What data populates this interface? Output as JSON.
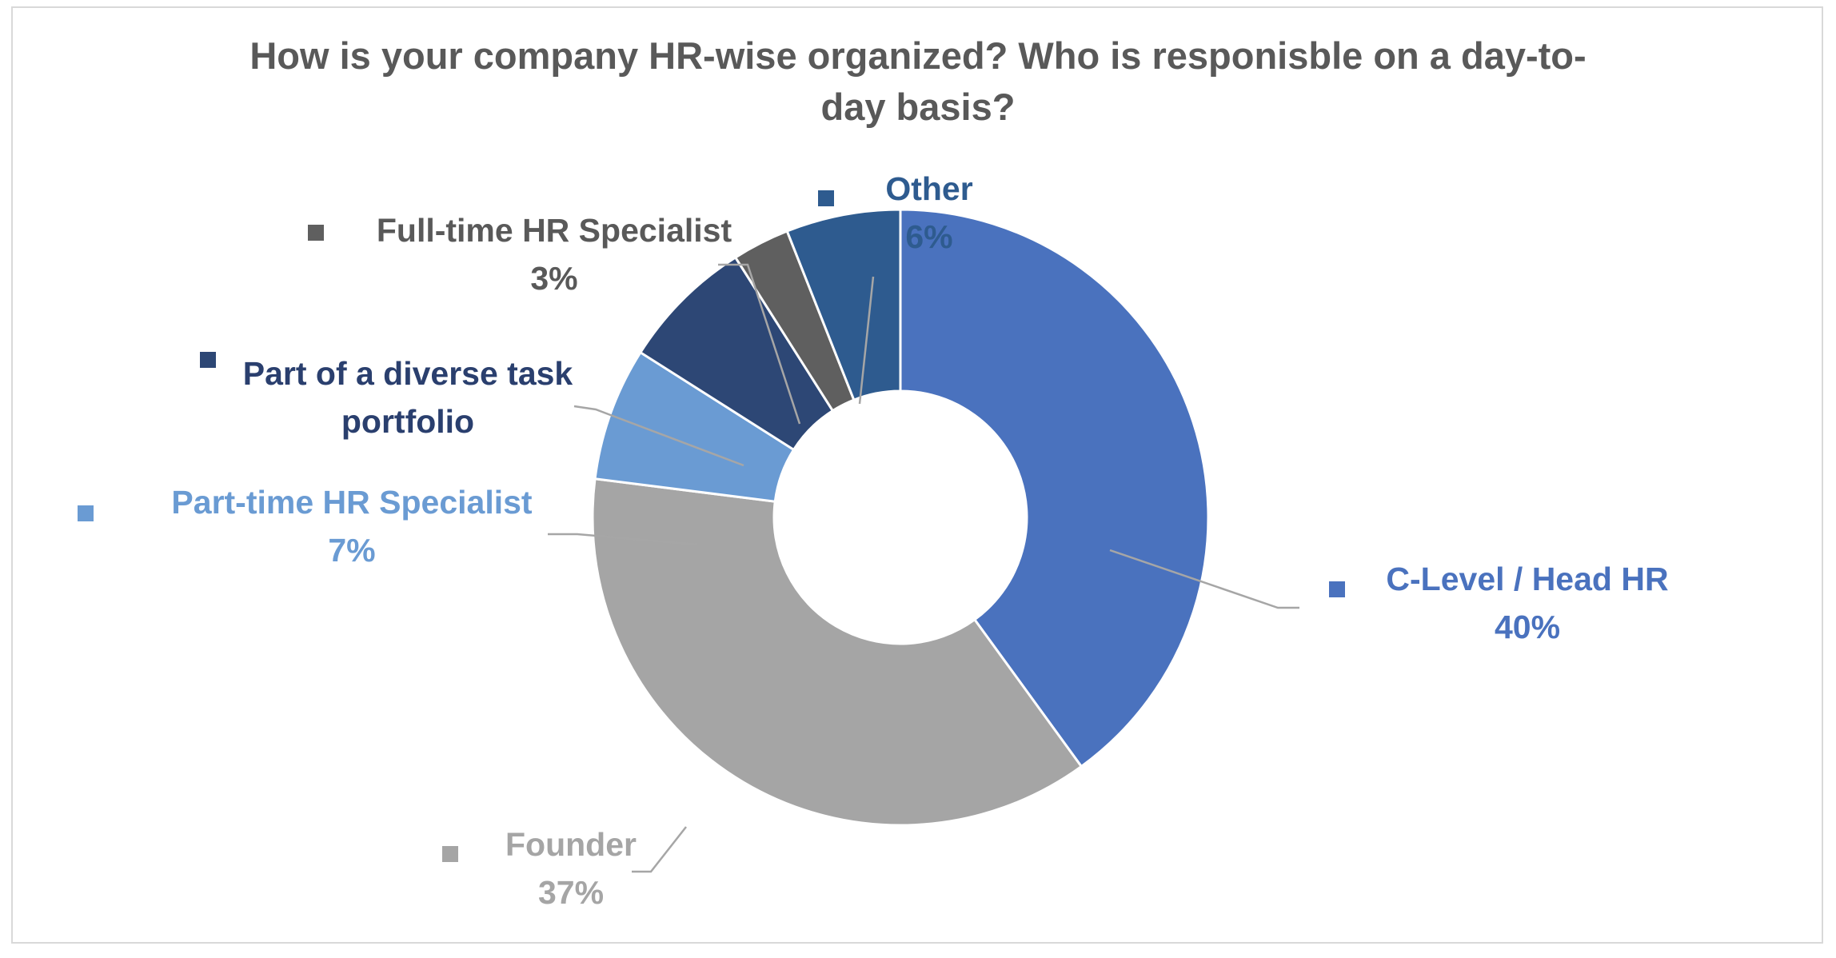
{
  "chart_data": {
    "type": "pie",
    "donut": true,
    "title_lines": [
      "How is your company HR-wise organized? Who is responisble on a day-to-",
      "day basis?"
    ],
    "slices": [
      {
        "name": "C-Level / Head HR",
        "label_lines": [
          "C-Level / Head HR"
        ],
        "value": 40,
        "value_label": "40%",
        "color": "#4a72be"
      },
      {
        "name": "Founder",
        "label_lines": [
          "Founder"
        ],
        "value": 37,
        "value_label": "37%",
        "color": "#a5a5a5"
      },
      {
        "name": "Part-time HR Specialist",
        "label_lines": [
          "Part-time HR Specialist"
        ],
        "value": 7,
        "value_label": "7%",
        "color": "#6a9bd3"
      },
      {
        "name": "Part of a diverse task portfolio",
        "label_lines": [
          "Part of a diverse task",
          "portfolio"
        ],
        "value": 7,
        "value_label": "",
        "color": "#2d4775"
      },
      {
        "name": "Full-time HR Specialist",
        "label_lines": [
          "Full-time HR Specialist"
        ],
        "value": 3,
        "value_label": "3%",
        "color": "#5f5f5f"
      },
      {
        "name": "Other",
        "label_lines": [
          "Other"
        ],
        "value": 6,
        "value_label": "6%",
        "color": "#2e5b8f"
      }
    ],
    "legend": "none",
    "label_colors": {
      "C-Level / Head HR": "#4a72be",
      "Founder": "#a5a5a5",
      "Part-time HR Specialist": "#6a9bd3",
      "Part of a diverse task portfolio": "#2a3f6e",
      "Full-time HR Specialist": "#595959",
      "Other": "#2e5b8f"
    }
  }
}
